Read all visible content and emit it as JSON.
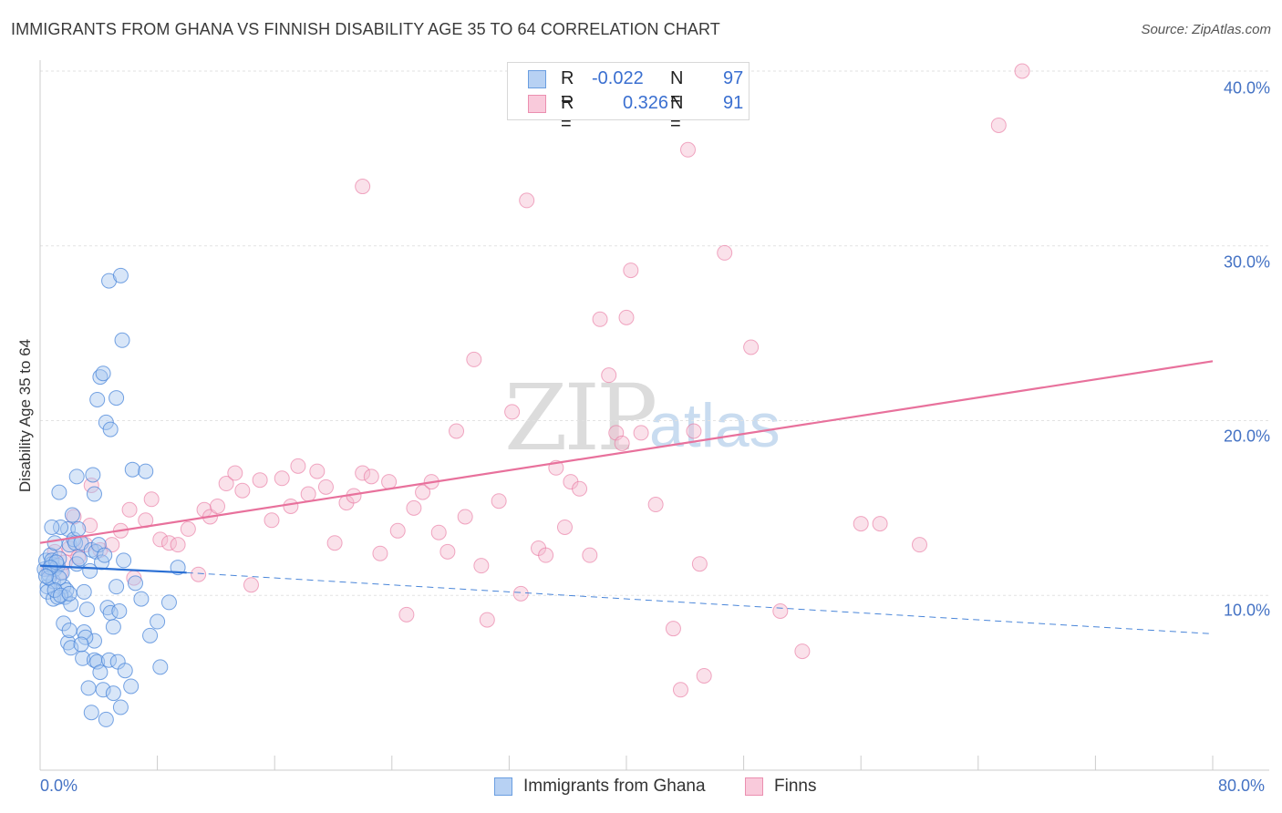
{
  "title": "IMMIGRANTS FROM GHANA VS FINNISH DISABILITY AGE 35 TO 64 CORRELATION CHART",
  "source": "Source: ZipAtlas.com",
  "watermark": {
    "zip": "ZIP",
    "atlas": "atlas"
  },
  "colors": {
    "blue": "#4a86d9",
    "blue_fill": "#a9c8f0",
    "pink": "#e8719c",
    "pink_fill": "#f5bdd0",
    "tick_text": "#4472c4"
  },
  "legend": {
    "rows": [
      {
        "r_label": "R =",
        "r_value": "-0.022",
        "n_label": "N =",
        "n_value": "97"
      },
      {
        "r_label": "R =",
        "r_value": "0.326",
        "n_label": "N =",
        "n_value": "91"
      }
    ]
  },
  "bottom_legend": {
    "series1": "Immigrants from Ghana",
    "series2": "Finns"
  },
  "chart_data": {
    "type": "scatter",
    "title": "IMMIGRANTS FROM GHANA VS FINNISH DISABILITY AGE 35 TO 64 CORRELATION CHART",
    "xlabel": "",
    "ylabel": "Disability Age 35 to 64",
    "xlim": [
      0,
      80
    ],
    "ylim": [
      0,
      40
    ],
    "x_tick_labels": [
      "0.0%",
      "80.0%"
    ],
    "y_ticks": [
      10,
      20,
      30,
      40
    ],
    "y_tick_labels": [
      "10.0%",
      "20.0%",
      "30.0%",
      "40.0%"
    ],
    "grid": true,
    "series": [
      {
        "name": "Immigrants from Ghana",
        "trend": {
          "x1": 0,
          "y1": 11.7,
          "x2": 10,
          "y2": 11.3,
          "dashed_to_x": 80,
          "dashed_to_y": 7.8
        },
        "points": [
          [
            0.3,
            11.5
          ],
          [
            0.4,
            12.0
          ],
          [
            0.5,
            10.5
          ],
          [
            0.6,
            11.2
          ],
          [
            0.7,
            12.3
          ],
          [
            0.8,
            11.8
          ],
          [
            0.9,
            10.8
          ],
          [
            1.0,
            11.5
          ],
          [
            0.5,
            10.2
          ],
          [
            0.6,
            11.0
          ],
          [
            0.8,
            12.0
          ],
          [
            1.0,
            13.0
          ],
          [
            1.2,
            11.7
          ],
          [
            1.3,
            12.1
          ],
          [
            1.5,
            11.3
          ],
          [
            1.6,
            10.5
          ],
          [
            1.7,
            9.9
          ],
          [
            1.8,
            10.3
          ],
          [
            1.9,
            13.8
          ],
          [
            2.0,
            12.9
          ],
          [
            2.1,
            9.5
          ],
          [
            2.2,
            14.6
          ],
          [
            2.3,
            13.2
          ],
          [
            2.4,
            13.0
          ],
          [
            2.5,
            11.8
          ],
          [
            2.6,
            13.8
          ],
          [
            2.7,
            12.1
          ],
          [
            2.8,
            13.0
          ],
          [
            0.9,
            9.8
          ],
          [
            1.3,
            11.0
          ],
          [
            1.4,
            13.9
          ],
          [
            1.2,
            9.9
          ],
          [
            1.1,
            11.9
          ],
          [
            0.7,
            11.6
          ],
          [
            0.4,
            11.1
          ],
          [
            1.0,
            10.3
          ],
          [
            1.4,
            10.0
          ],
          [
            2.0,
            10.1
          ],
          [
            3.0,
            10.2
          ],
          [
            3.2,
            9.2
          ],
          [
            3.4,
            11.4
          ],
          [
            3.5,
            12.6
          ],
          [
            3.7,
            7.4
          ],
          [
            3.8,
            12.5
          ],
          [
            4.0,
            12.9
          ],
          [
            4.2,
            11.9
          ],
          [
            4.4,
            12.3
          ],
          [
            4.6,
            9.3
          ],
          [
            4.8,
            9.0
          ],
          [
            5.0,
            8.2
          ],
          [
            5.2,
            10.5
          ],
          [
            5.4,
            9.1
          ],
          [
            1.6,
            8.4
          ],
          [
            1.9,
            7.3
          ],
          [
            2.0,
            8.0
          ],
          [
            2.1,
            7.0
          ],
          [
            2.9,
            6.4
          ],
          [
            3.0,
            7.9
          ],
          [
            3.1,
            7.6
          ],
          [
            3.3,
            4.7
          ],
          [
            3.5,
            3.3
          ],
          [
            3.7,
            6.3
          ],
          [
            3.9,
            6.2
          ],
          [
            4.1,
            5.6
          ],
          [
            4.3,
            4.6
          ],
          [
            4.5,
            2.9
          ],
          [
            4.7,
            6.3
          ],
          [
            5.0,
            4.4
          ],
          [
            5.3,
            6.2
          ],
          [
            5.5,
            3.6
          ],
          [
            5.8,
            5.7
          ],
          [
            6.2,
            4.8
          ],
          [
            1.3,
            15.9
          ],
          [
            2.5,
            16.8
          ],
          [
            3.6,
            16.9
          ],
          [
            3.7,
            15.8
          ],
          [
            3.9,
            21.2
          ],
          [
            4.1,
            22.5
          ],
          [
            4.3,
            22.7
          ],
          [
            4.5,
            19.9
          ],
          [
            4.7,
            28.0
          ],
          [
            4.8,
            19.5
          ],
          [
            5.2,
            21.3
          ],
          [
            5.5,
            28.3
          ],
          [
            5.6,
            24.6
          ],
          [
            6.3,
            17.2
          ],
          [
            7.2,
            17.1
          ],
          [
            7.5,
            7.7
          ],
          [
            8.0,
            8.5
          ],
          [
            8.2,
            5.9
          ],
          [
            8.8,
            9.6
          ],
          [
            9.4,
            11.6
          ],
          [
            5.7,
            12.0
          ],
          [
            6.5,
            10.7
          ],
          [
            6.9,
            9.8
          ],
          [
            2.8,
            7.2
          ],
          [
            0.8,
            13.9
          ]
        ]
      },
      {
        "name": "Finns",
        "trend": {
          "x1": 0,
          "y1": 13.0,
          "x2": 80,
          "y2": 23.4
        },
        "points": [
          [
            0.6,
            11.5
          ],
          [
            1.0,
            12.5
          ],
          [
            1.4,
            11.3
          ],
          [
            2.0,
            12.7
          ],
          [
            2.3,
            14.5
          ],
          [
            2.6,
            12.2
          ],
          [
            3.1,
            12.9
          ],
          [
            3.4,
            14.0
          ],
          [
            4.1,
            12.6
          ],
          [
            4.9,
            12.9
          ],
          [
            5.5,
            13.7
          ],
          [
            6.1,
            14.9
          ],
          [
            6.4,
            11.0
          ],
          [
            7.2,
            14.3
          ],
          [
            7.6,
            15.5
          ],
          [
            8.2,
            13.2
          ],
          [
            8.8,
            13.0
          ],
          [
            9.4,
            12.9
          ],
          [
            10.1,
            13.8
          ],
          [
            10.8,
            11.2
          ],
          [
            11.2,
            14.9
          ],
          [
            11.6,
            14.5
          ],
          [
            12.1,
            15.1
          ],
          [
            12.7,
            16.4
          ],
          [
            13.3,
            17.0
          ],
          [
            13.8,
            16.0
          ],
          [
            14.4,
            10.6
          ],
          [
            15.0,
            16.6
          ],
          [
            15.8,
            14.3
          ],
          [
            16.5,
            16.7
          ],
          [
            17.1,
            15.1
          ],
          [
            17.6,
            17.4
          ],
          [
            18.3,
            15.8
          ],
          [
            18.9,
            17.1
          ],
          [
            19.5,
            16.2
          ],
          [
            20.1,
            13.0
          ],
          [
            20.9,
            15.3
          ],
          [
            21.4,
            15.7
          ],
          [
            22.0,
            17.0
          ],
          [
            22.6,
            16.8
          ],
          [
            23.2,
            12.4
          ],
          [
            23.8,
            16.5
          ],
          [
            24.4,
            13.7
          ],
          [
            25.0,
            8.9
          ],
          [
            25.5,
            15.0
          ],
          [
            26.1,
            15.9
          ],
          [
            26.7,
            16.5
          ],
          [
            27.2,
            13.6
          ],
          [
            27.8,
            12.5
          ],
          [
            28.4,
            19.4
          ],
          [
            29.0,
            14.5
          ],
          [
            29.6,
            23.5
          ],
          [
            30.1,
            11.7
          ],
          [
            30.5,
            8.6
          ],
          [
            31.3,
            15.4
          ],
          [
            32.2,
            20.5
          ],
          [
            32.8,
            10.1
          ],
          [
            33.2,
            32.6
          ],
          [
            34.0,
            12.7
          ],
          [
            34.5,
            12.3
          ],
          [
            35.2,
            17.3
          ],
          [
            35.8,
            13.9
          ],
          [
            36.2,
            16.5
          ],
          [
            36.8,
            16.1
          ],
          [
            37.5,
            12.3
          ],
          [
            38.2,
            25.8
          ],
          [
            38.8,
            22.6
          ],
          [
            39.3,
            19.3
          ],
          [
            39.7,
            18.7
          ],
          [
            40.0,
            25.9
          ],
          [
            40.3,
            28.6
          ],
          [
            41.0,
            19.3
          ],
          [
            42.0,
            15.2
          ],
          [
            43.2,
            8.1
          ],
          [
            43.7,
            4.6
          ],
          [
            44.2,
            35.5
          ],
          [
            44.6,
            19.4
          ],
          [
            45.0,
            11.8
          ],
          [
            45.3,
            5.4
          ],
          [
            46.7,
            29.6
          ],
          [
            48.5,
            24.2
          ],
          [
            50.5,
            9.1
          ],
          [
            52.0,
            6.8
          ],
          [
            56.0,
            14.1
          ],
          [
            57.3,
            14.1
          ],
          [
            60.0,
            12.9
          ],
          [
            65.4,
            36.9
          ],
          [
            67.0,
            40.0
          ],
          [
            22.0,
            33.4
          ],
          [
            3.5,
            16.3
          ],
          [
            1.7,
            11.9
          ]
        ]
      }
    ]
  }
}
